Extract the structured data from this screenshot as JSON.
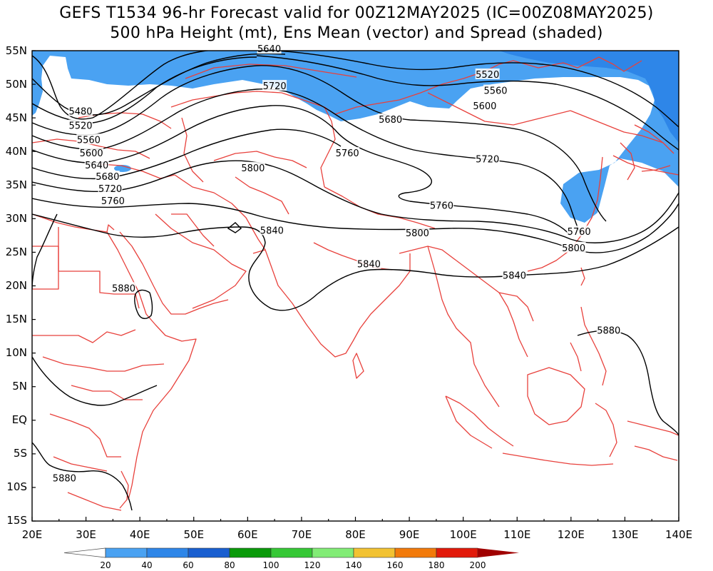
{
  "title": {
    "line1": "GEFS T1534 96-hr Forecast valid for 00Z12MAY2025 (IC=00Z08MAY2025)",
    "line2": "500 hPa Height (mt), Ens Mean (vector) and Spread (shaded)"
  },
  "axes": {
    "lon_labels": [
      "20E",
      "30E",
      "40E",
      "50E",
      "60E",
      "70E",
      "80E",
      "90E",
      "100E",
      "110E",
      "120E",
      "130E",
      "140E"
    ],
    "lat_labels": [
      "55N",
      "50N",
      "45N",
      "40N",
      "35N",
      "30N",
      "25N",
      "20N",
      "15N",
      "10N",
      "5N",
      "EQ",
      "5S",
      "10S",
      "15S"
    ]
  },
  "contour_labels": [
    {
      "text": "5640",
      "lon": 64,
      "lat": 55.3
    },
    {
      "text": "5520",
      "lon": 104.5,
      "lat": 51.5
    },
    {
      "text": "5560",
      "lon": 106,
      "lat": 49.1
    },
    {
      "text": "5600",
      "lon": 104,
      "lat": 46.8
    },
    {
      "text": "5720",
      "lon": 65,
      "lat": 49.8
    },
    {
      "text": "5480",
      "lon": 29,
      "lat": 46
    },
    {
      "text": "5520",
      "lon": 29,
      "lat": 43.9
    },
    {
      "text": "5560",
      "lon": 30.5,
      "lat": 41.8
    },
    {
      "text": "5600",
      "lon": 31,
      "lat": 39.8
    },
    {
      "text": "5640",
      "lon": 32,
      "lat": 38
    },
    {
      "text": "5680",
      "lon": 34,
      "lat": 36.3
    },
    {
      "text": "5720",
      "lon": 34.5,
      "lat": 34.5
    },
    {
      "text": "5760",
      "lon": 35,
      "lat": 32.7
    },
    {
      "text": "5680",
      "lon": 86.5,
      "lat": 44.8
    },
    {
      "text": "5760",
      "lon": 78.5,
      "lat": 39.8
    },
    {
      "text": "5720",
      "lon": 104.5,
      "lat": 38.9
    },
    {
      "text": "5800",
      "lon": 61,
      "lat": 37.6
    },
    {
      "text": "5760",
      "lon": 96,
      "lat": 32
    },
    {
      "text": "5840",
      "lon": 64.5,
      "lat": 28.3
    },
    {
      "text": "5800",
      "lon": 91.5,
      "lat": 27.9
    },
    {
      "text": "5760",
      "lon": 121.5,
      "lat": 28.1
    },
    {
      "text": "5800",
      "lon": 120.5,
      "lat": 25.7
    },
    {
      "text": "5840",
      "lon": 82.5,
      "lat": 23.3
    },
    {
      "text": "5840",
      "lon": 109.5,
      "lat": 21.6
    },
    {
      "text": "5880",
      "lon": 37,
      "lat": 19.7
    },
    {
      "text": "5880",
      "lon": 127,
      "lat": 13.4
    },
    {
      "text": "5880",
      "lon": 26,
      "lat": -8.6
    }
  ],
  "colorbar": {
    "labels": [
      "20",
      "40",
      "60",
      "80",
      "100",
      "120",
      "140",
      "160",
      "180",
      "200"
    ],
    "colors": [
      "#ffffff",
      "#4aa2f2",
      "#2e86e8",
      "#1a5fd0",
      "#0a9a0a",
      "#36c836",
      "#82ec76",
      "#f2c232",
      "#f27a0a",
      "#e21a0a",
      "#a00000"
    ]
  },
  "map_colors": {
    "border": "#e8413c",
    "contour": "#000000",
    "spread_light": "#4aa2f2",
    "spread_medium": "#2e86e8"
  }
}
